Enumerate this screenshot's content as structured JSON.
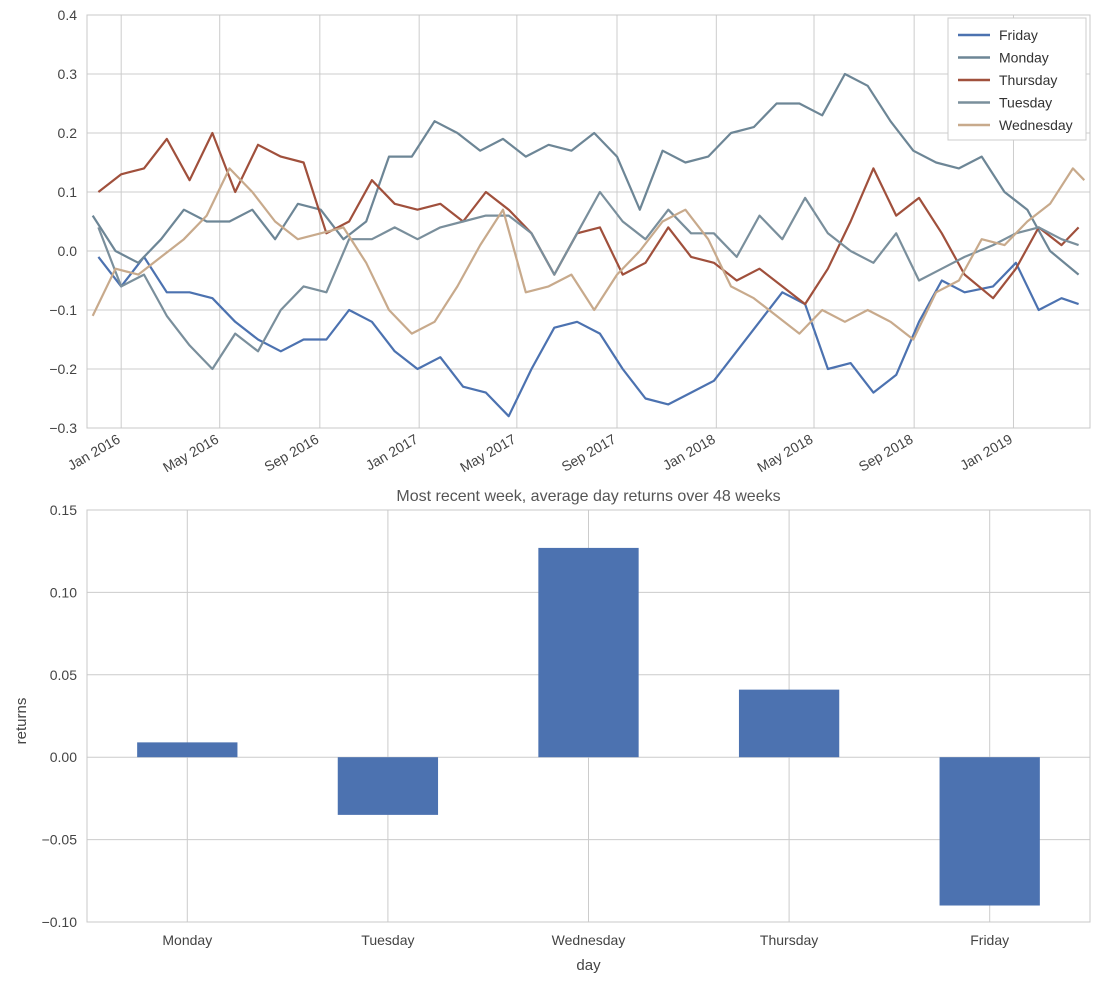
{
  "chart_data": [
    {
      "type": "line",
      "title": "",
      "xlabel": "",
      "ylabel": "",
      "x_ticks": [
        "Jan 2016",
        "May 2016",
        "Sep 2016",
        "Jan 2017",
        "May 2017",
        "Sep 2017",
        "Jan 2018",
        "May 2018",
        "Sep 2018",
        "Jan 2019"
      ],
      "y_ticks": [
        "−0.3",
        "−0.2",
        "−0.1",
        "0.0",
        "0.1",
        "0.2",
        "0.3",
        "0.4"
      ],
      "ylim": [
        -0.3,
        0.4
      ],
      "xlim": [
        "2015-11-20",
        "2019-04-05"
      ],
      "grid": true,
      "legend_position": "top-right",
      "series": [
        {
          "name": "Friday",
          "color": "#4c72b0",
          "points": [
            [
              "2015-12-04",
              -0.01
            ],
            [
              "2016-01-01",
              -0.06
            ],
            [
              "2016-01-29",
              -0.01
            ],
            [
              "2016-02-26",
              -0.07
            ],
            [
              "2016-03-25",
              -0.07
            ],
            [
              "2016-04-22",
              -0.08
            ],
            [
              "2016-05-20",
              -0.12
            ],
            [
              "2016-06-17",
              -0.15
            ],
            [
              "2016-07-15",
              -0.17
            ],
            [
              "2016-08-12",
              -0.15
            ],
            [
              "2016-09-09",
              -0.15
            ],
            [
              "2016-10-07",
              -0.1
            ],
            [
              "2016-11-04",
              -0.12
            ],
            [
              "2016-12-02",
              -0.17
            ],
            [
              "2016-12-30",
              -0.2
            ],
            [
              "2017-01-27",
              -0.18
            ],
            [
              "2017-02-24",
              -0.23
            ],
            [
              "2017-03-24",
              -0.24
            ],
            [
              "2017-04-21",
              -0.28
            ],
            [
              "2017-05-19",
              -0.2
            ],
            [
              "2017-06-16",
              -0.13
            ],
            [
              "2017-07-14",
              -0.12
            ],
            [
              "2017-08-11",
              -0.14
            ],
            [
              "2017-09-08",
              -0.2
            ],
            [
              "2017-10-06",
              -0.25
            ],
            [
              "2017-11-03",
              -0.26
            ],
            [
              "2017-12-01",
              -0.24
            ],
            [
              "2017-12-29",
              -0.22
            ],
            [
              "2018-01-26",
              -0.17
            ],
            [
              "2018-02-23",
              -0.12
            ],
            [
              "2018-03-23",
              -0.07
            ],
            [
              "2018-04-20",
              -0.09
            ],
            [
              "2018-05-18",
              -0.2
            ],
            [
              "2018-06-15",
              -0.19
            ],
            [
              "2018-07-13",
              -0.24
            ],
            [
              "2018-08-10",
              -0.21
            ],
            [
              "2018-09-07",
              -0.12
            ],
            [
              "2018-10-05",
              -0.05
            ],
            [
              "2018-11-02",
              -0.07
            ],
            [
              "2018-12-07",
              -0.06
            ],
            [
              "2019-01-04",
              -0.02
            ],
            [
              "2019-02-01",
              -0.1
            ],
            [
              "2019-03-01",
              -0.08
            ],
            [
              "2019-03-22",
              -0.09
            ]
          ]
        },
        {
          "name": "Monday",
          "color": "#6d8696",
          "points": [
            [
              "2015-11-27",
              0.06
            ],
            [
              "2015-12-25",
              0.0
            ],
            [
              "2016-01-22",
              -0.02
            ],
            [
              "2016-02-19",
              0.02
            ],
            [
              "2016-03-18",
              0.07
            ],
            [
              "2016-04-15",
              0.05
            ],
            [
              "2016-05-13",
              0.05
            ],
            [
              "2016-06-10",
              0.07
            ],
            [
              "2016-07-08",
              0.02
            ],
            [
              "2016-08-05",
              0.08
            ],
            [
              "2016-09-02",
              0.07
            ],
            [
              "2016-09-30",
              0.02
            ],
            [
              "2016-10-28",
              0.05
            ],
            [
              "2016-11-25",
              0.16
            ],
            [
              "2016-12-23",
              0.16
            ],
            [
              "2017-01-20",
              0.22
            ],
            [
              "2017-02-17",
              0.2
            ],
            [
              "2017-03-17",
              0.17
            ],
            [
              "2017-04-14",
              0.19
            ],
            [
              "2017-05-12",
              0.16
            ],
            [
              "2017-06-09",
              0.18
            ],
            [
              "2017-07-07",
              0.17
            ],
            [
              "2017-08-04",
              0.2
            ],
            [
              "2017-09-01",
              0.16
            ],
            [
              "2017-09-29",
              0.07
            ],
            [
              "2017-10-27",
              0.17
            ],
            [
              "2017-11-24",
              0.15
            ],
            [
              "2017-12-22",
              0.16
            ],
            [
              "2018-01-19",
              0.2
            ],
            [
              "2018-02-16",
              0.21
            ],
            [
              "2018-03-16",
              0.25
            ],
            [
              "2018-04-13",
              0.25
            ],
            [
              "2018-05-11",
              0.23
            ],
            [
              "2018-06-08",
              0.3
            ],
            [
              "2018-07-06",
              0.28
            ],
            [
              "2018-08-03",
              0.22
            ],
            [
              "2018-08-31",
              0.17
            ],
            [
              "2018-09-28",
              0.15
            ],
            [
              "2018-10-26",
              0.14
            ],
            [
              "2018-11-23",
              0.16
            ],
            [
              "2018-12-21",
              0.1
            ],
            [
              "2019-01-18",
              0.07
            ],
            [
              "2019-02-15",
              0.0
            ],
            [
              "2019-03-22",
              -0.04
            ]
          ]
        },
        {
          "name": "Thursday",
          "color": "#a0503c",
          "points": [
            [
              "2015-12-04",
              0.1
            ],
            [
              "2016-01-01",
              0.13
            ],
            [
              "2016-01-29",
              0.14
            ],
            [
              "2016-02-26",
              0.19
            ],
            [
              "2016-03-25",
              0.12
            ],
            [
              "2016-04-22",
              0.2
            ],
            [
              "2016-05-20",
              0.1
            ],
            [
              "2016-06-17",
              0.18
            ],
            [
              "2016-07-15",
              0.16
            ],
            [
              "2016-08-12",
              0.15
            ],
            [
              "2016-09-09",
              0.03
            ],
            [
              "2016-10-07",
              0.05
            ],
            [
              "2016-11-04",
              0.12
            ],
            [
              "2016-12-02",
              0.08
            ],
            [
              "2016-12-30",
              0.07
            ],
            [
              "2017-01-27",
              0.08
            ],
            [
              "2017-02-24",
              0.05
            ],
            [
              "2017-03-24",
              0.1
            ],
            [
              "2017-04-21",
              0.07
            ],
            [
              "2017-05-19",
              0.03
            ],
            [
              "2017-06-16",
              -0.04
            ],
            [
              "2017-07-14",
              0.03
            ],
            [
              "2017-08-11",
              0.04
            ],
            [
              "2017-09-08",
              -0.04
            ],
            [
              "2017-10-06",
              -0.02
            ],
            [
              "2017-11-03",
              0.04
            ],
            [
              "2017-12-01",
              -0.01
            ],
            [
              "2017-12-29",
              -0.02
            ],
            [
              "2018-01-26",
              -0.05
            ],
            [
              "2018-02-23",
              -0.03
            ],
            [
              "2018-03-23",
              -0.06
            ],
            [
              "2018-04-20",
              -0.09
            ],
            [
              "2018-05-18",
              -0.03
            ],
            [
              "2018-06-15",
              0.05
            ],
            [
              "2018-07-13",
              0.14
            ],
            [
              "2018-08-10",
              0.06
            ],
            [
              "2018-09-07",
              0.09
            ],
            [
              "2018-10-05",
              0.03
            ],
            [
              "2018-11-02",
              -0.04
            ],
            [
              "2018-12-07",
              -0.08
            ],
            [
              "2019-01-04",
              -0.03
            ],
            [
              "2019-02-01",
              0.04
            ],
            [
              "2019-03-01",
              0.01
            ],
            [
              "2019-03-22",
              0.04
            ]
          ]
        },
        {
          "name": "Tuesday",
          "color": "#7a8f9c",
          "points": [
            [
              "2015-12-04",
              0.04
            ],
            [
              "2016-01-01",
              -0.06
            ],
            [
              "2016-01-29",
              -0.04
            ],
            [
              "2016-02-26",
              -0.11
            ],
            [
              "2016-03-25",
              -0.16
            ],
            [
              "2016-04-22",
              -0.2
            ],
            [
              "2016-05-20",
              -0.14
            ],
            [
              "2016-06-17",
              -0.17
            ],
            [
              "2016-07-15",
              -0.1
            ],
            [
              "2016-08-12",
              -0.06
            ],
            [
              "2016-09-09",
              -0.07
            ],
            [
              "2016-10-07",
              0.02
            ],
            [
              "2016-11-04",
              0.02
            ],
            [
              "2016-12-02",
              0.04
            ],
            [
              "2016-12-30",
              0.02
            ],
            [
              "2017-01-27",
              0.04
            ],
            [
              "2017-02-24",
              0.05
            ],
            [
              "2017-03-24",
              0.06
            ],
            [
              "2017-04-21",
              0.06
            ],
            [
              "2017-05-19",
              0.03
            ],
            [
              "2017-06-16",
              -0.04
            ],
            [
              "2017-07-14",
              0.03
            ],
            [
              "2017-08-11",
              0.1
            ],
            [
              "2017-09-08",
              0.05
            ],
            [
              "2017-10-06",
              0.02
            ],
            [
              "2017-11-03",
              0.07
            ],
            [
              "2017-12-01",
              0.03
            ],
            [
              "2017-12-29",
              0.03
            ],
            [
              "2018-01-26",
              -0.01
            ],
            [
              "2018-02-23",
              0.06
            ],
            [
              "2018-03-23",
              0.02
            ],
            [
              "2018-04-20",
              0.09
            ],
            [
              "2018-05-18",
              0.03
            ],
            [
              "2018-06-15",
              0.0
            ],
            [
              "2018-07-13",
              -0.02
            ],
            [
              "2018-08-10",
              0.03
            ],
            [
              "2018-09-07",
              -0.05
            ],
            [
              "2018-10-05",
              -0.03
            ],
            [
              "2018-11-02",
              -0.01
            ],
            [
              "2018-12-07",
              0.01
            ],
            [
              "2019-01-04",
              0.03
            ],
            [
              "2019-02-01",
              0.04
            ],
            [
              "2019-03-01",
              0.02
            ],
            [
              "2019-03-22",
              0.01
            ]
          ]
        },
        {
          "name": "Wednesday",
          "color": "#c8aa8c",
          "points": [
            [
              "2015-11-27",
              -0.11
            ],
            [
              "2015-12-25",
              -0.03
            ],
            [
              "2016-01-22",
              -0.04
            ],
            [
              "2016-02-19",
              -0.01
            ],
            [
              "2016-03-18",
              0.02
            ],
            [
              "2016-04-15",
              0.06
            ],
            [
              "2016-05-13",
              0.14
            ],
            [
              "2016-06-10",
              0.1
            ],
            [
              "2016-07-08",
              0.05
            ],
            [
              "2016-08-05",
              0.02
            ],
            [
              "2016-09-02",
              0.03
            ],
            [
              "2016-09-30",
              0.04
            ],
            [
              "2016-10-28",
              -0.02
            ],
            [
              "2016-11-25",
              -0.1
            ],
            [
              "2016-12-23",
              -0.14
            ],
            [
              "2017-01-20",
              -0.12
            ],
            [
              "2017-02-17",
              -0.06
            ],
            [
              "2017-03-17",
              0.01
            ],
            [
              "2017-04-14",
              0.07
            ],
            [
              "2017-05-12",
              -0.07
            ],
            [
              "2017-06-09",
              -0.06
            ],
            [
              "2017-07-07",
              -0.04
            ],
            [
              "2017-08-04",
              -0.1
            ],
            [
              "2017-09-01",
              -0.04
            ],
            [
              "2017-09-29",
              0.0
            ],
            [
              "2017-10-27",
              0.05
            ],
            [
              "2017-11-24",
              0.07
            ],
            [
              "2017-12-22",
              0.02
            ],
            [
              "2018-01-19",
              -0.06
            ],
            [
              "2018-02-16",
              -0.08
            ],
            [
              "2018-03-16",
              -0.11
            ],
            [
              "2018-04-13",
              -0.14
            ],
            [
              "2018-05-11",
              -0.1
            ],
            [
              "2018-06-08",
              -0.12
            ],
            [
              "2018-07-06",
              -0.1
            ],
            [
              "2018-08-03",
              -0.12
            ],
            [
              "2018-08-31",
              -0.15
            ],
            [
              "2018-09-28",
              -0.07
            ],
            [
              "2018-10-26",
              -0.05
            ],
            [
              "2018-11-23",
              0.02
            ],
            [
              "2018-12-21",
              0.01
            ],
            [
              "2019-01-18",
              0.05
            ],
            [
              "2019-02-15",
              0.08
            ],
            [
              "2019-03-15",
              0.14
            ],
            [
              "2019-03-29",
              0.12
            ]
          ]
        }
      ]
    },
    {
      "type": "bar",
      "title": "Most recent week, average day returns over 48 weeks",
      "xlabel": "day",
      "ylabel": "returns",
      "categories": [
        "Monday",
        "Tuesday",
        "Wednesday",
        "Thursday",
        "Friday"
      ],
      "values": [
        0.009,
        -0.035,
        0.127,
        0.041,
        -0.09
      ],
      "ylim": [
        -0.1,
        0.15
      ],
      "y_ticks": [
        "−0.10",
        "−0.05",
        "0.00",
        "0.05",
        "0.10",
        "0.15"
      ],
      "grid": true,
      "bar_color": "#4c72b0"
    }
  ]
}
